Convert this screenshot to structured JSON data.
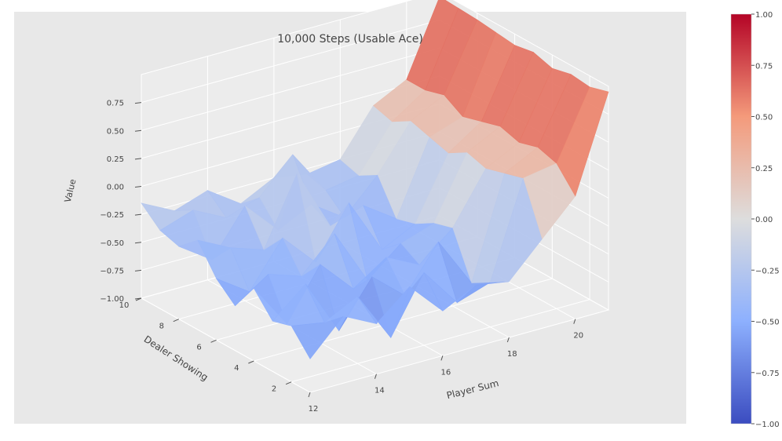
{
  "chart_data": {
    "type": "surface",
    "title": "10,000 Steps (Usable Ace)",
    "xlabel": "Player Sum",
    "ylabel": "Dealer Showing",
    "zlabel": "Value",
    "x": [
      12,
      13,
      14,
      15,
      16,
      17,
      18,
      19,
      20,
      21
    ],
    "y": [
      1,
      2,
      3,
      4,
      5,
      6,
      7,
      8,
      9,
      10
    ],
    "x_ticks": [
      "12",
      "14",
      "16",
      "18",
      "20"
    ],
    "x_tick_values": [
      12,
      14,
      16,
      18,
      20
    ],
    "y_ticks": [
      "2",
      "4",
      "6",
      "8",
      "10"
    ],
    "y_tick_values": [
      2,
      4,
      6,
      8,
      10
    ],
    "z_ticks": [
      "−1.00",
      "−0.75",
      "−0.50",
      "−0.25",
      "0.00",
      "0.25",
      "0.50",
      "0.75"
    ],
    "z_tick_values": [
      -1.0,
      -0.75,
      -0.5,
      -0.25,
      0.0,
      0.25,
      0.5,
      0.75
    ],
    "zlim": [
      -1.0,
      1.0
    ],
    "grid": true,
    "colormap": "coolwarm",
    "colorbar": {
      "ticks": [
        "1.00",
        "0.75",
        "0.50",
        "0.25",
        "0.00",
        "−0.25",
        "−0.50",
        "−0.75",
        "−1.00"
      ],
      "tick_values": [
        1.0,
        0.75,
        0.5,
        0.25,
        0.0,
        -0.25,
        -0.5,
        -0.75,
        -1.0
      ],
      "range": [
        -1.0,
        1.0
      ]
    },
    "z": [
      [
        -0.7,
        -0.4,
        -0.55,
        -0.3,
        -0.6,
        -0.45,
        -0.5,
        -0.2,
        0.1,
        0.95
      ],
      [
        -0.5,
        -0.55,
        -0.4,
        -0.85,
        -0.35,
        -0.7,
        -0.6,
        0.25,
        0.3,
        0.9
      ],
      [
        -0.55,
        -0.3,
        -0.8,
        -0.4,
        -0.65,
        -0.25,
        -0.7,
        0.2,
        0.35,
        0.92
      ],
      [
        -0.35,
        -0.75,
        -0.3,
        -0.6,
        -0.4,
        -0.55,
        -0.3,
        0.15,
        0.3,
        0.88
      ],
      [
        -0.6,
        -0.4,
        -0.5,
        -0.2,
        -0.7,
        -0.45,
        -0.35,
        0.2,
        0.35,
        0.93
      ],
      [
        -0.45,
        -0.65,
        -0.25,
        -0.55,
        -0.1,
        -0.6,
        -0.45,
        0.1,
        0.3,
        0.9
      ],
      [
        -0.2,
        -0.35,
        -0.45,
        0.15,
        -0.4,
        -0.3,
        -0.5,
        0.15,
        0.25,
        0.92
      ],
      [
        -0.35,
        -0.55,
        -0.15,
        -0.45,
        -0.3,
        -0.5,
        -0.2,
        0.2,
        0.35,
        0.94
      ],
      [
        -0.3,
        -0.2,
        -0.35,
        -0.25,
        0.05,
        -0.35,
        -0.3,
        0.1,
        0.3,
        0.95
      ],
      [
        -0.15,
        -0.3,
        -0.2,
        -0.4,
        -0.25,
        -0.3,
        -0.25,
        0.15,
        0.3,
        0.96
      ]
    ]
  }
}
